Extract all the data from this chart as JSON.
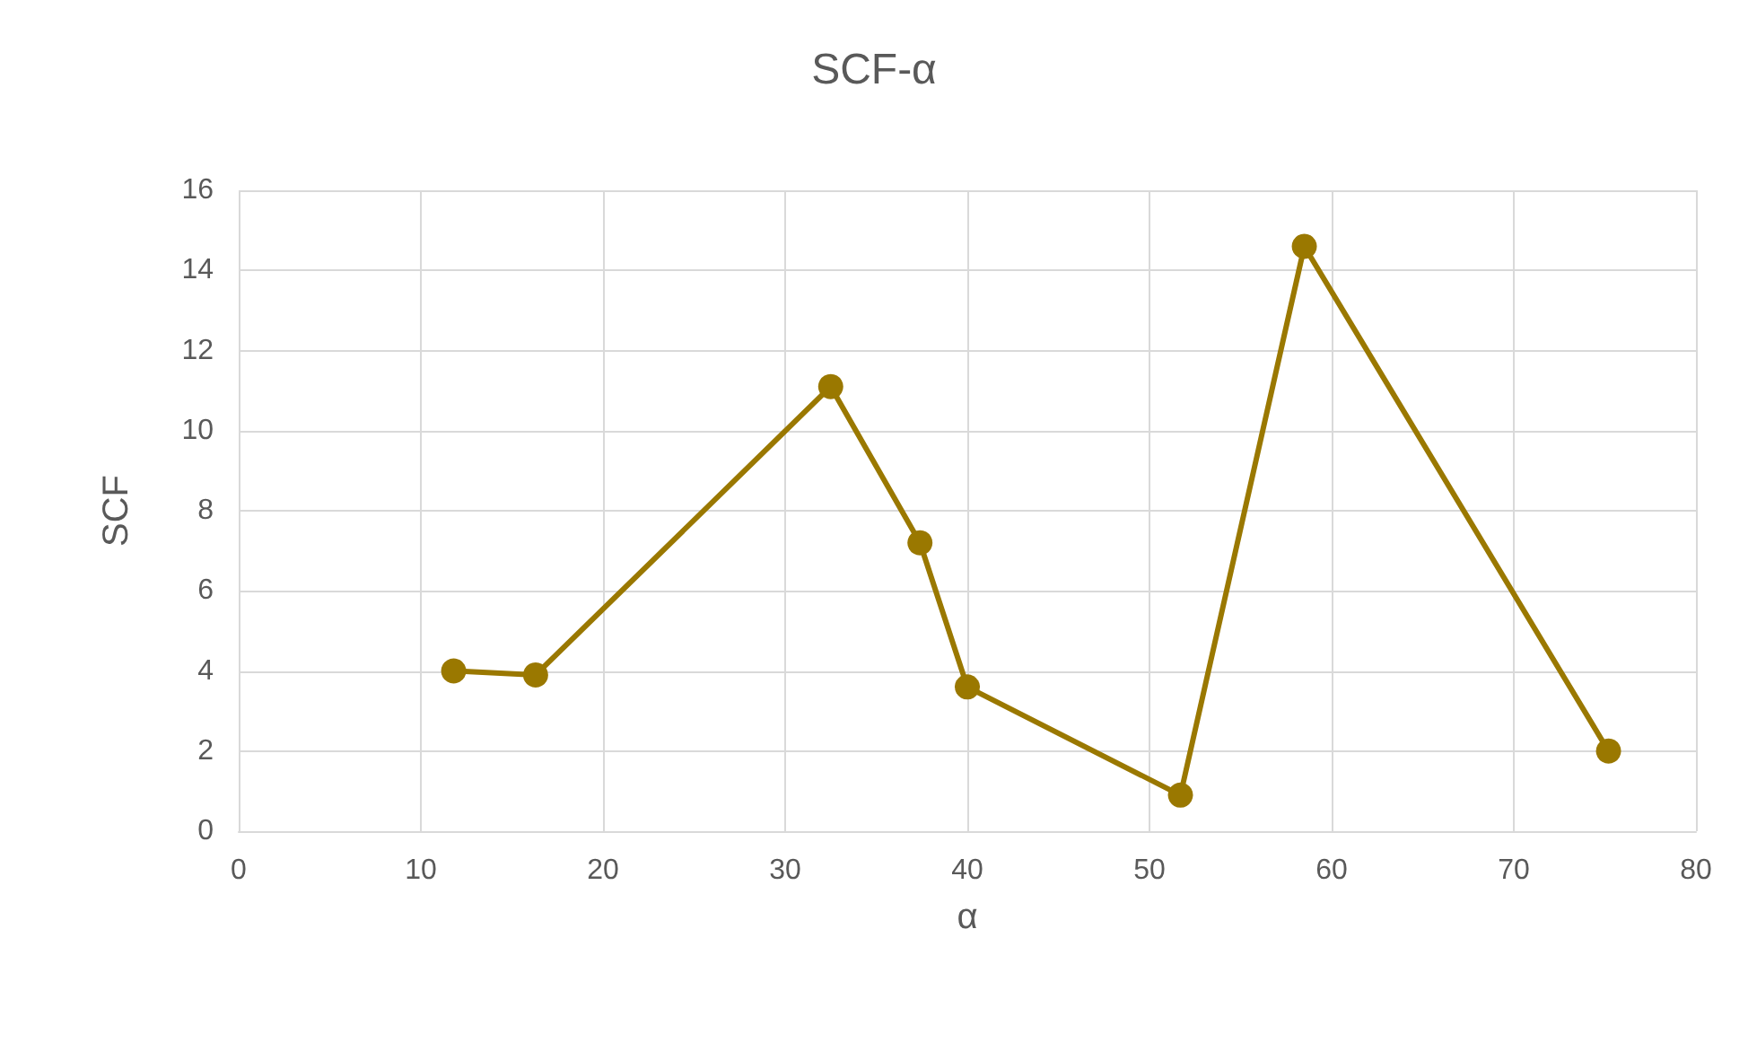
{
  "chart_data": {
    "type": "line",
    "title": "SCF-α",
    "xlabel": "α",
    "ylabel": "SCF",
    "x": [
      11.8,
      16.3,
      32.5,
      37.4,
      40.0,
      51.7,
      58.5,
      75.2
    ],
    "series": [
      {
        "color": "#9a7800",
        "values": [
          4.0,
          3.9,
          11.1,
          7.2,
          3.6,
          0.9,
          14.6,
          2.0
        ]
      }
    ],
    "xlim": [
      0,
      80
    ],
    "xticks": [
      0,
      10,
      20,
      30,
      40,
      50,
      60,
      70,
      80
    ],
    "ylim": [
      0,
      16
    ],
    "yticks": [
      0,
      2,
      4,
      6,
      8,
      10,
      12,
      14,
      16
    ],
    "grid": true,
    "marker": "circle",
    "line_style": "solid"
  }
}
